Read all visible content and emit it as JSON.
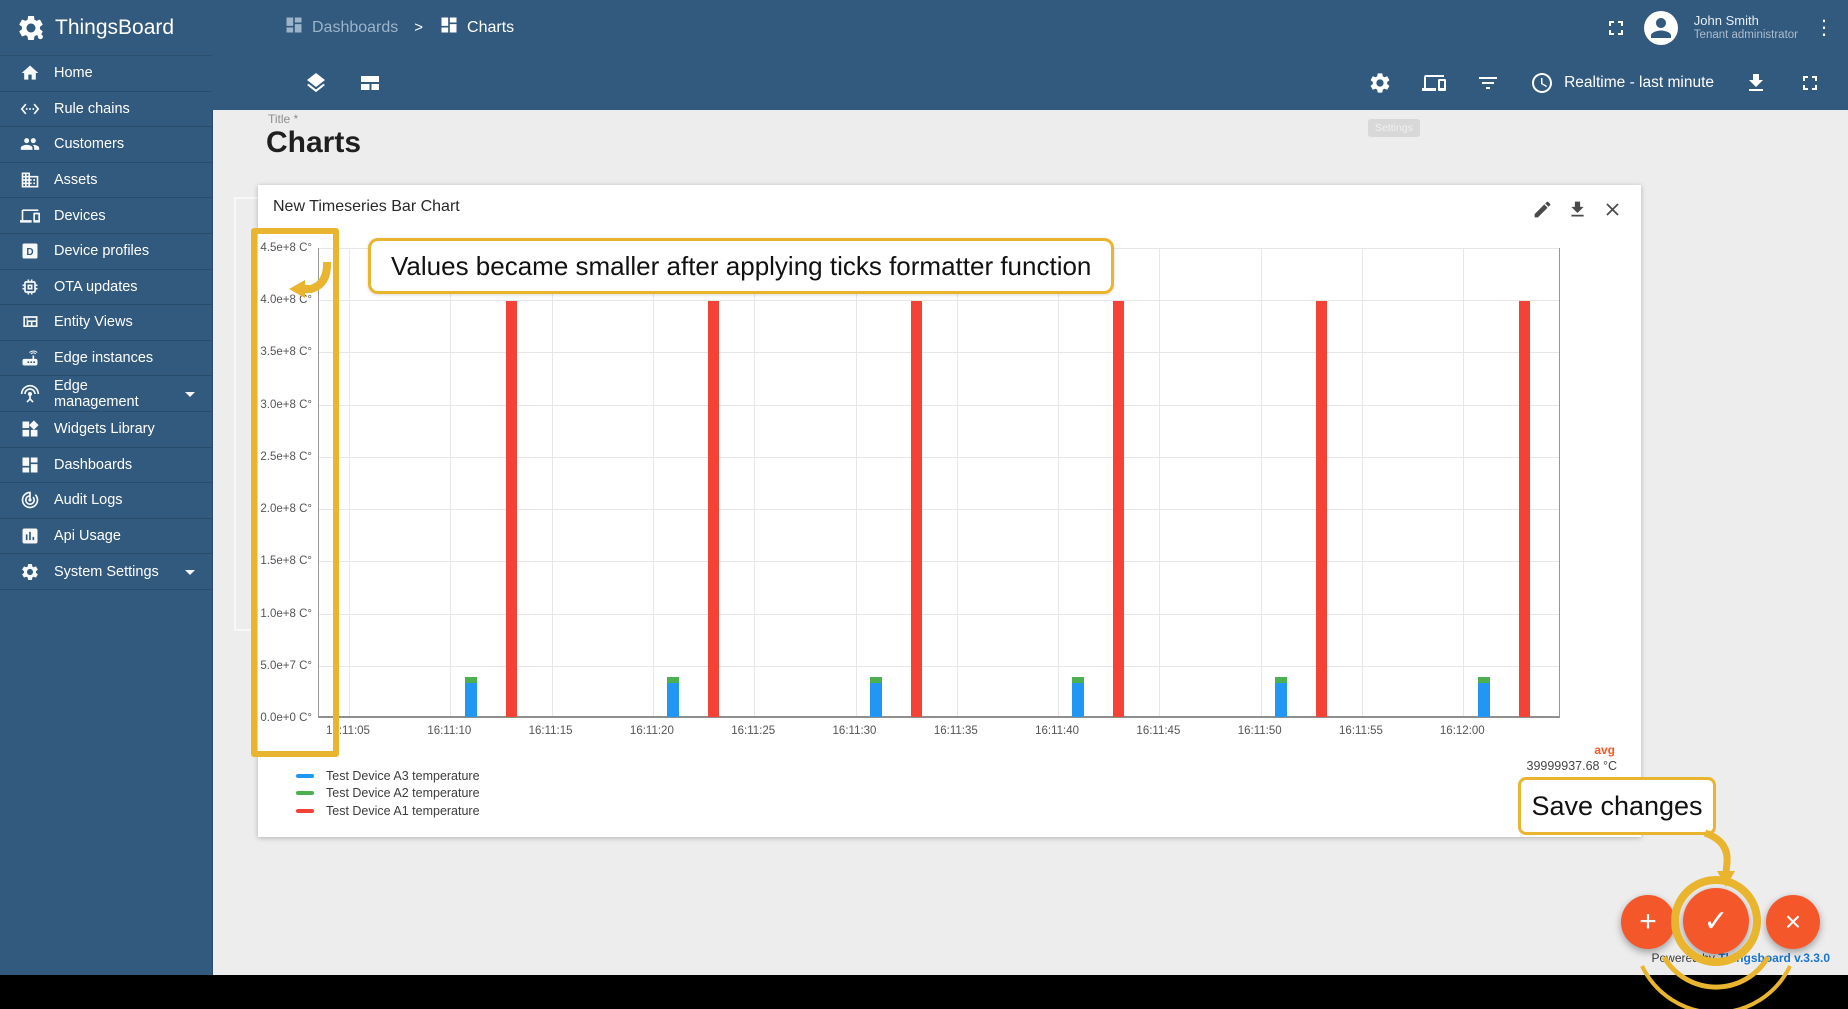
{
  "app": {
    "name": "ThingsBoard",
    "powered_by_prefix": "Powered by ",
    "powered_by_link": "Thingsboard v.3.3.0"
  },
  "header": {
    "breadcrumb": [
      {
        "label": "Dashboards"
      },
      {
        "label": "Charts"
      }
    ],
    "separator": ">",
    "user": {
      "name": "John Smith",
      "role": "Tenant administrator"
    }
  },
  "toolbar": {
    "timewindow": "Realtime - last minute",
    "settings_tooltip_ghost": "Settings"
  },
  "page": {
    "title_field_label": "Title *",
    "title_value": "Charts"
  },
  "widget": {
    "title": "New Timeseries Bar Chart"
  },
  "callouts": {
    "ticks_formatter_note": "Values became smaller after applying ticks formatter function",
    "save_changes_note": "Save changes"
  },
  "fab": {
    "add": "+",
    "confirm": "✓",
    "cancel": "×"
  },
  "sidebar": {
    "items": [
      {
        "label": "Home",
        "icon": "home"
      },
      {
        "label": "Rule chains",
        "icon": "rule-chains"
      },
      {
        "label": "Customers",
        "icon": "customers"
      },
      {
        "label": "Assets",
        "icon": "assets"
      },
      {
        "label": "Devices",
        "icon": "devices"
      },
      {
        "label": "Device profiles",
        "icon": "device-profiles"
      },
      {
        "label": "OTA updates",
        "icon": "ota-updates"
      },
      {
        "label": "Entity Views",
        "icon": "entity-views"
      },
      {
        "label": "Edge instances",
        "icon": "edge-instances"
      },
      {
        "label": "Edge management",
        "icon": "edge-management",
        "expandable": true
      },
      {
        "label": "Widgets Library",
        "icon": "widgets-library"
      },
      {
        "label": "Dashboards",
        "icon": "dashboards"
      },
      {
        "label": "Audit Logs",
        "icon": "audit-logs"
      },
      {
        "label": "Api Usage",
        "icon": "api-usage"
      },
      {
        "label": "System Settings",
        "icon": "system-settings",
        "expandable": true
      }
    ]
  },
  "colors": {
    "accent_yellow": "#e9b52f",
    "fab_orange": "#f4582a",
    "link_blue": "#1874d2",
    "avg_orange": "#ff5722",
    "series_blue": "#2196f3",
    "series_green": "#4caf50",
    "series_red": "#f44336"
  },
  "chart_data": {
    "type": "bar",
    "title": "New Timeseries Bar Chart",
    "y_axis": {
      "unit": "C°",
      "min": 0,
      "max": 450000000,
      "tick_step": 50000000,
      "tick_labels": [
        "0.0e+0 C°",
        "5.0e+7 C°",
        "1.0e+8 C°",
        "1.5e+8 C°",
        "2.0e+8 C°",
        "2.5e+8 C°",
        "3.0e+8 C°",
        "3.5e+8 C°",
        "4.0e+8 C°",
        "4.5e+8 C°"
      ]
    },
    "x_axis": {
      "base_time": "16:11:00",
      "tick_labels": [
        "16:11:05",
        "16:11:10",
        "16:11:15",
        "16:11:20",
        "16:11:25",
        "16:11:30",
        "16:11:35",
        "16:11:40",
        "16:11:45",
        "16:11:50",
        "16:11:55",
        "16:12:00"
      ],
      "tick_seconds": [
        5,
        10,
        15,
        20,
        25,
        30,
        35,
        40,
        45,
        50,
        55,
        60
      ]
    },
    "series": [
      {
        "name": "Test Device A3 temperature",
        "color": "#2196f3",
        "bar_offsets_s": [
          11,
          21,
          31,
          41,
          51,
          61
        ],
        "values": [
          34500000,
          34500000,
          34500000,
          34500000,
          34500000,
          34500000
        ],
        "stacked": false
      },
      {
        "name": "Test Device A2 temperature",
        "color": "#4caf50",
        "bar_offsets_s": [
          11,
          21,
          31,
          41,
          51,
          61
        ],
        "values": [
          40000000,
          40000000,
          40000000,
          40000000,
          40000000,
          40000000
        ],
        "stacked": true
      },
      {
        "name": "Test Device A1 temperature",
        "color": "#f44336",
        "bar_offsets_s": [
          13,
          23,
          33,
          43,
          53,
          63
        ],
        "values": [
          400000000,
          400000000,
          400000000,
          400000000,
          400000000,
          400000000
        ],
        "stacked": false
      }
    ],
    "legend": {
      "avg_label": "avg",
      "visible_avg_value": "39999937.68 °C",
      "position": "bottom"
    }
  }
}
